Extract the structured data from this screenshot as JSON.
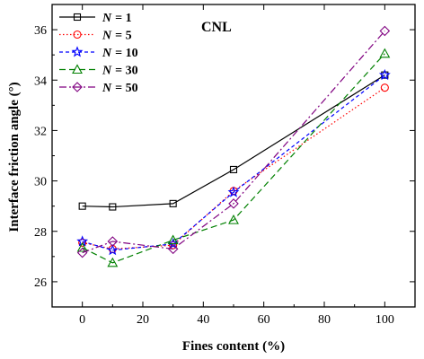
{
  "chart_data": {
    "type": "line",
    "title": "CNL",
    "xlabel": "Fines content (%)",
    "ylabel": "Interface friction angle (°)",
    "xlim": [
      -10,
      110
    ],
    "ylim": [
      25,
      37
    ],
    "xticks": [
      0,
      20,
      40,
      60,
      80,
      100
    ],
    "yticks": [
      26,
      28,
      30,
      32,
      34,
      36
    ],
    "grid": false,
    "legend_position": "top-left",
    "x": [
      0,
      10,
      30,
      50,
      100
    ],
    "series": [
      {
        "name": "N = 1",
        "legend_symbol": "N",
        "legend_value": "= 1",
        "color": "#000000",
        "marker": "square",
        "dash": "solid",
        "values": [
          29.0,
          28.97,
          29.1,
          30.45,
          34.2
        ]
      },
      {
        "name": "N = 5",
        "legend_symbol": "N",
        "legend_value": "= 5",
        "color": "#ff0000",
        "marker": "circle",
        "dash": "dot",
        "values": [
          27.55,
          27.3,
          27.45,
          29.6,
          33.7
        ]
      },
      {
        "name": "N = 10",
        "legend_symbol": "N",
        "legend_value": "= 10",
        "color": "#0000ff",
        "marker": "star",
        "dash": "dash",
        "values": [
          27.6,
          27.25,
          27.5,
          29.55,
          34.2
        ]
      },
      {
        "name": "N = 30",
        "legend_symbol": "N",
        "legend_value": "= 30",
        "color": "#008000",
        "marker": "triangle",
        "dash": "longdash",
        "values": [
          27.35,
          26.75,
          27.65,
          28.45,
          35.05
        ]
      },
      {
        "name": "N = 50",
        "legend_symbol": "N",
        "legend_value": "= 50",
        "color": "#800080",
        "marker": "diamond",
        "dash": "dashdot",
        "values": [
          27.15,
          27.6,
          27.3,
          29.1,
          35.95
        ]
      }
    ]
  }
}
